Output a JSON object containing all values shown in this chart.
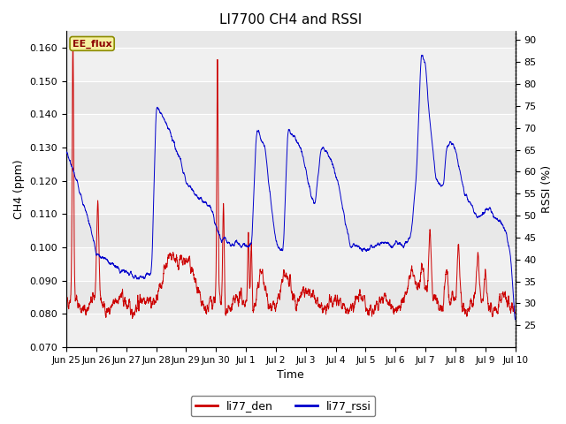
{
  "title": "LI7700 CH4 and RSSI",
  "xlabel": "Time",
  "ylabel_left": "CH4 (ppm)",
  "ylabel_right": "RSSI (%)",
  "ylim_left": [
    0.07,
    0.165
  ],
  "ylim_right": [
    20,
    92
  ],
  "yticks_left": [
    0.07,
    0.08,
    0.09,
    0.1,
    0.11,
    0.12,
    0.13,
    0.14,
    0.15,
    0.16
  ],
  "yticks_right": [
    25,
    30,
    35,
    40,
    45,
    50,
    55,
    60,
    65,
    70,
    75,
    80,
    85,
    90
  ],
  "xtick_labels": [
    "Jun 25",
    "Jun 26",
    "Jun 27",
    "Jun 28",
    "Jun 29",
    "Jun 30",
    "Jul 1",
    "Jul 2",
    "Jul 3",
    "Jul 4",
    "Jul 5",
    "Jul 6",
    "Jul 7",
    "Jul 8",
    "Jul 9",
    "Jul 10"
  ],
  "annotation_text": "EE_flux",
  "color_ch4": "#cc0000",
  "color_rssi": "#0000cc",
  "legend_labels": [
    "li77_den",
    "li77_rssi"
  ],
  "plot_bg_color": "#e8e8e8",
  "band_color_light": "#f0f0f0",
  "title_fontsize": 11,
  "label_fontsize": 9,
  "tick_fontsize": 8
}
